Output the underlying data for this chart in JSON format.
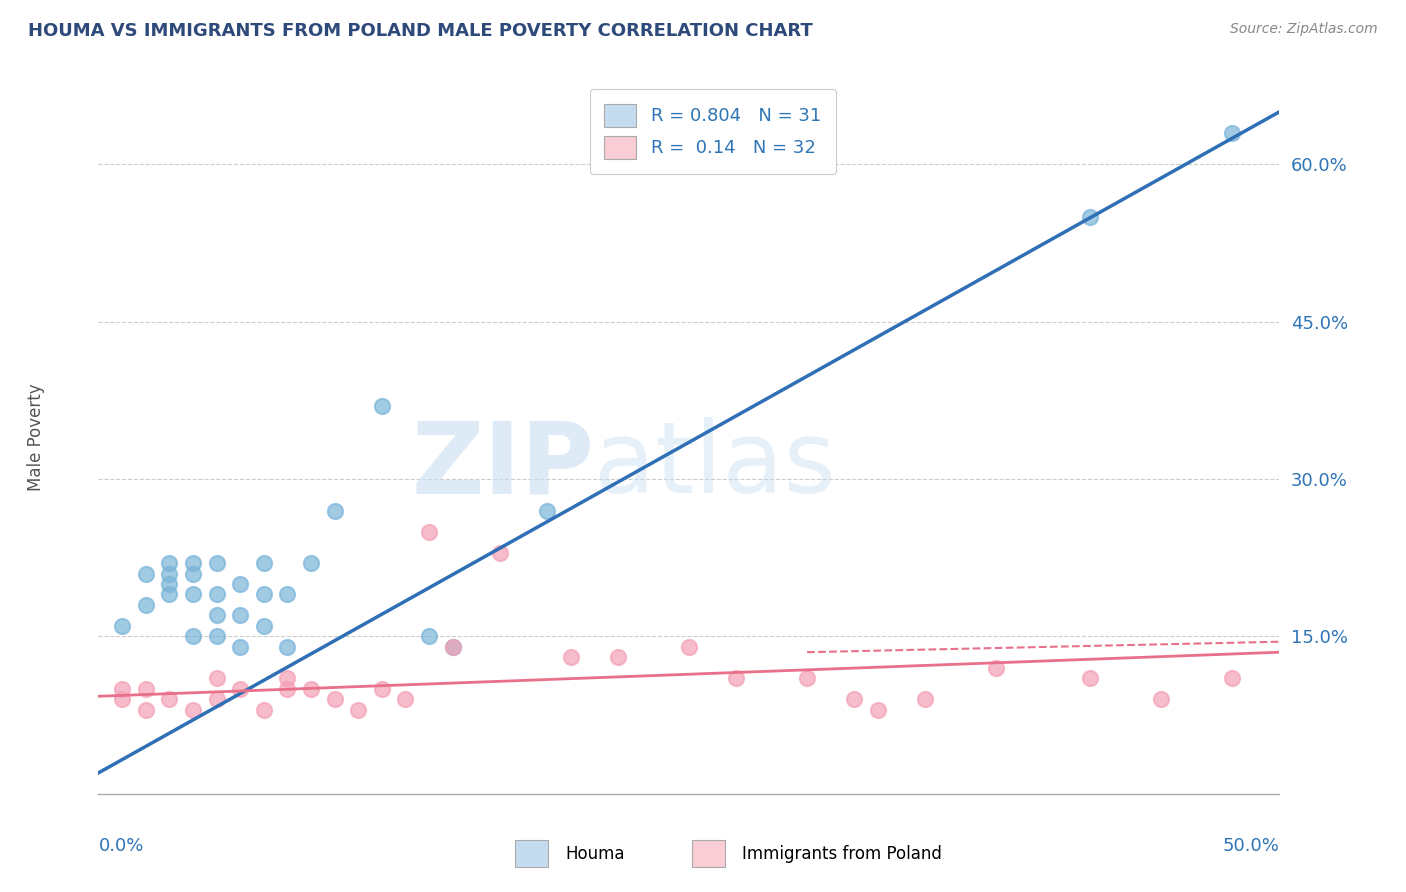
{
  "title": "HOUMA VS IMMIGRANTS FROM POLAND MALE POVERTY CORRELATION CHART",
  "source": "Source: ZipAtlas.com",
  "ylabel": "Male Poverty",
  "xlim": [
    0.0,
    0.5
  ],
  "ylim": [
    0.0,
    0.68
  ],
  "yticks": [
    0.15,
    0.3,
    0.45,
    0.6
  ],
  "ytick_labels": [
    "15.0%",
    "30.0%",
    "45.0%",
    "60.0%"
  ],
  "blue_R": 0.804,
  "blue_N": 31,
  "pink_R": 0.14,
  "pink_N": 32,
  "blue_color": "#7ab4d8",
  "blue_fill": "#c5dcf0",
  "pink_color": "#f4a0b5",
  "pink_fill": "#f9cdd6",
  "blue_line_color": "#2e6fb5",
  "pink_line_color": "#e8708a",
  "legend_label_blue": "Houma",
  "legend_label_pink": "Immigrants from Poland",
  "title_color": "#2e4a7a",
  "axis_label_color": "#2e4a7a",
  "legend_text_color": "#2e75b6",
  "blue_scatter_x": [
    0.01,
    0.02,
    0.02,
    0.03,
    0.03,
    0.03,
    0.03,
    0.04,
    0.04,
    0.04,
    0.04,
    0.05,
    0.05,
    0.05,
    0.05,
    0.06,
    0.06,
    0.06,
    0.07,
    0.07,
    0.07,
    0.08,
    0.08,
    0.09,
    0.1,
    0.12,
    0.14,
    0.15,
    0.19,
    0.42,
    0.48
  ],
  "blue_scatter_y": [
    0.16,
    0.21,
    0.18,
    0.19,
    0.2,
    0.21,
    0.22,
    0.15,
    0.19,
    0.21,
    0.22,
    0.15,
    0.17,
    0.19,
    0.22,
    0.14,
    0.17,
    0.2,
    0.16,
    0.19,
    0.22,
    0.14,
    0.19,
    0.22,
    0.27,
    0.37,
    0.15,
    0.14,
    0.27,
    0.55,
    0.63
  ],
  "pink_scatter_x": [
    0.01,
    0.01,
    0.02,
    0.02,
    0.03,
    0.04,
    0.05,
    0.05,
    0.06,
    0.07,
    0.08,
    0.08,
    0.09,
    0.1,
    0.11,
    0.12,
    0.13,
    0.14,
    0.15,
    0.17,
    0.2,
    0.22,
    0.25,
    0.27,
    0.3,
    0.32,
    0.33,
    0.35,
    0.38,
    0.42,
    0.45,
    0.48
  ],
  "pink_scatter_y": [
    0.09,
    0.1,
    0.08,
    0.1,
    0.09,
    0.08,
    0.09,
    0.11,
    0.1,
    0.08,
    0.1,
    0.11,
    0.1,
    0.09,
    0.08,
    0.1,
    0.09,
    0.25,
    0.14,
    0.23,
    0.13,
    0.13,
    0.14,
    0.11,
    0.11,
    0.09,
    0.08,
    0.09,
    0.12,
    0.11,
    0.09,
    0.11
  ],
  "blue_line_x": [
    0.0,
    0.5
  ],
  "blue_line_y": [
    0.02,
    0.65
  ],
  "pink_line_x": [
    0.0,
    0.5
  ],
  "pink_line_y": [
    0.093,
    0.135
  ],
  "pink_dash_line_x": [
    0.3,
    0.5
  ],
  "pink_dash_line_y": [
    0.135,
    0.145
  ]
}
